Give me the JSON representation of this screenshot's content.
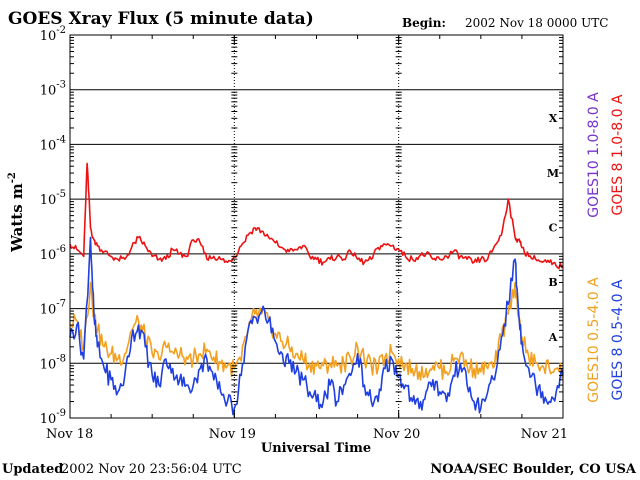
{
  "header": {
    "title": "GOES Xray Flux (5 minute data)",
    "begin_label": "Begin:",
    "begin_value": "2002 Nov 18 0000 UTC"
  },
  "footer": {
    "updated_label": "Updated",
    "updated_value": "2002 Nov 20 23:56:04 UTC",
    "credit": "NOAA/SEC Boulder, CO USA"
  },
  "chart_data": {
    "type": "line",
    "title": "GOES Xray Flux (5 minute data)",
    "xlabel": "Universal Time",
    "ylabel": "Watts m",
    "ylabel_sup": "-2",
    "y_scale": "log",
    "ylim": [
      1e-09,
      0.01
    ],
    "xlim": [
      "2002-11-18T00:00Z",
      "2002-11-21T00:00Z"
    ],
    "x_ticks": [
      "Nov 18",
      "Nov 19",
      "Nov 20",
      "Nov 21"
    ],
    "y_ticks": [
      {
        "base": "10",
        "exp": "-9",
        "value": 1e-09
      },
      {
        "base": "10",
        "exp": "-8",
        "value": 1e-08
      },
      {
        "base": "10",
        "exp": "-7",
        "value": 1e-07
      },
      {
        "base": "10",
        "exp": "-6",
        "value": 1e-06
      },
      {
        "base": "10",
        "exp": "-5",
        "value": 1e-05
      },
      {
        "base": "10",
        "exp": "-4",
        "value": 0.0001
      },
      {
        "base": "10",
        "exp": "-3",
        "value": 0.001
      },
      {
        "base": "10",
        "exp": "-2",
        "value": 0.01
      }
    ],
    "flare_classes": [
      {
        "label": "A",
        "value": 1e-08
      },
      {
        "label": "B",
        "value": 1e-07
      },
      {
        "label": "C",
        "value": 1e-06
      },
      {
        "label": "M",
        "value": 1e-05
      },
      {
        "label": "X",
        "value": 0.0001
      }
    ],
    "grid": "horizontal lines at each decade, dotted vertical day lines",
    "legend_placement": "right side, vertical",
    "series": [
      {
        "name": "GOES10 1.0-8.0 A",
        "color": "#7733cc",
        "draw": false,
        "x_hours": [],
        "values": []
      },
      {
        "name": "GOES 8 1.0-8.0 A",
        "color": "#ee1111",
        "draw": true,
        "x_hours": [
          0,
          1,
          2,
          2.5,
          3,
          3.5,
          4,
          5,
          6,
          7,
          8,
          9,
          10,
          11,
          12,
          13,
          14,
          15,
          16,
          17,
          18,
          19,
          20,
          21,
          22,
          23,
          24,
          25,
          26,
          27,
          28,
          29,
          30,
          31,
          32,
          33,
          34,
          35,
          36,
          37,
          38,
          39,
          40,
          41,
          42,
          43,
          44,
          45,
          46,
          47,
          48,
          49,
          50,
          51,
          52,
          53,
          54,
          55,
          56,
          57,
          58,
          59,
          60,
          61,
          62,
          63,
          64,
          65,
          65.5,
          66,
          67,
          68,
          69,
          70,
          71,
          72
        ],
        "values": [
          1.5e-06,
          1.2e-06,
          9e-07,
          4.5e-05,
          3e-06,
          1.8e-06,
          1.4e-06,
          1.1e-06,
          9e-07,
          8e-07,
          8e-07,
          1.3e-06,
          2e-06,
          1.4e-06,
          9e-07,
          8e-07,
          8e-07,
          1.2e-06,
          1e-06,
          9e-07,
          1.8e-06,
          1.6e-06,
          8e-07,
          9e-07,
          8e-07,
          7e-07,
          9e-07,
          1.4e-06,
          2.2e-06,
          3e-06,
          2.6e-06,
          2e-06,
          1.6e-06,
          1.3e-06,
          1.1e-06,
          1.2e-06,
          1.4e-06,
          9e-07,
          8e-07,
          7e-07,
          8e-07,
          9e-07,
          8e-07,
          1.1e-06,
          8e-07,
          7e-07,
          8e-07,
          1.3e-06,
          1.5e-06,
          1.4e-06,
          1.2e-06,
          9e-07,
          8e-07,
          9e-07,
          1e-06,
          8e-07,
          8e-07,
          9e-07,
          1.1e-06,
          9e-07,
          8e-07,
          7e-07,
          8e-07,
          8e-07,
          1.4e-06,
          2.2e-06,
          1e-05,
          2e-06,
          1.8e-06,
          1.3e-06,
          9e-07,
          8e-07,
          7e-07,
          7e-07,
          6e-07,
          6e-07
        ]
      },
      {
        "name": "GOES10 0.5-4.0 A",
        "color": "#f2a020",
        "draw": true,
        "x_hours": [
          0,
          1,
          2,
          3,
          3.5,
          4,
          5,
          6,
          7,
          8,
          9,
          10,
          11,
          12,
          13,
          14,
          15,
          16,
          17,
          18,
          19,
          20,
          21,
          22,
          23,
          24,
          25,
          26,
          27,
          28,
          29,
          30,
          31,
          32,
          33,
          34,
          35,
          36,
          37,
          38,
          39,
          40,
          41,
          42,
          43,
          44,
          45,
          46,
          47,
          48,
          49,
          50,
          51,
          52,
          53,
          54,
          55,
          56,
          57,
          58,
          59,
          60,
          61,
          62,
          63,
          64,
          65,
          65.5,
          66,
          67,
          68,
          69,
          70,
          71,
          72
        ],
        "values": [
          5e-08,
          6e-08,
          2e-08,
          3e-07,
          8e-08,
          4e-08,
          2e-08,
          1.5e-08,
          1.2e-08,
          1.5e-08,
          4e-08,
          6e-08,
          3e-08,
          1.5e-08,
          1.2e-08,
          2e-08,
          1.6e-08,
          1.4e-08,
          1.3e-08,
          1.2e-08,
          1.5e-08,
          1.8e-08,
          1.3e-08,
          1e-08,
          9e-09,
          8e-09,
          1.1e-08,
          4e-08,
          8e-08,
          8e-08,
          6e-08,
          3.5e-08,
          2.5e-08,
          2e-08,
          1.5e-08,
          1.2e-08,
          1e-08,
          9e-09,
          9e-09,
          1e-08,
          9e-09,
          1e-08,
          1.2e-08,
          2e-08,
          1.1e-08,
          9e-09,
          8e-09,
          1.3e-08,
          1.6e-08,
          1.2e-08,
          1e-08,
          8e-09,
          7e-09,
          8e-09,
          9e-09,
          8e-09,
          7e-09,
          1.1e-08,
          1.4e-08,
          9e-09,
          8e-09,
          7e-09,
          8e-09,
          9e-09,
          3e-08,
          8e-08,
          3e-07,
          7e-08,
          3e-08,
          1.3e-08,
          1e-08,
          9e-09,
          8e-09,
          8e-09,
          7e-09
        ]
      },
      {
        "name": "GOES 8 0.5-4.0 A",
        "color": "#1f3fe0",
        "draw": true,
        "x_hours": [
          0,
          1,
          2,
          3,
          3.5,
          4,
          5,
          6,
          7,
          8,
          9,
          10,
          11,
          12,
          13,
          14,
          15,
          16,
          17,
          18,
          19,
          20,
          21,
          22,
          23,
          24,
          25,
          26,
          27,
          28,
          29,
          30,
          31,
          32,
          33,
          34,
          35,
          36,
          37,
          38,
          39,
          40,
          41,
          42,
          43,
          44,
          45,
          46,
          47,
          48,
          49,
          50,
          51,
          52,
          53,
          54,
          55,
          56,
          57,
          58,
          59,
          60,
          61,
          62,
          63,
          64,
          65,
          65.5,
          66,
          67,
          68,
          69,
          70,
          71,
          72
        ],
        "values": [
          3e-08,
          5e-08,
          1.2e-08,
          2e-06,
          7e-08,
          2e-08,
          8e-09,
          5e-09,
          3e-09,
          6e-09,
          3e-08,
          5e-08,
          2e-08,
          6e-09,
          4e-09,
          1.2e-08,
          8e-09,
          5e-09,
          4e-09,
          4e-09,
          8e-09,
          1.2e-08,
          5e-09,
          3e-09,
          2e-09,
          1.5e-09,
          6e-09,
          4e-08,
          7e-08,
          9e-08,
          6e-08,
          2.5e-08,
          1.5e-08,
          1e-08,
          7e-09,
          5e-09,
          3e-09,
          2e-09,
          2e-09,
          4e-09,
          2e-09,
          4e-09,
          6e-09,
          1.5e-08,
          4e-09,
          2e-09,
          2e-09,
          8e-09,
          1.2e-08,
          6e-09,
          4e-09,
          2e-09,
          1.5e-09,
          3e-09,
          5e-09,
          3e-09,
          2e-09,
          6e-09,
          1e-08,
          4e-09,
          2e-09,
          1.5e-09,
          3e-09,
          5e-09,
          3e-08,
          1.2e-07,
          8e-07,
          9e-08,
          2.5e-08,
          8e-09,
          4e-09,
          3e-09,
          2e-09,
          3e-09,
          6e-09
        ]
      }
    ]
  }
}
